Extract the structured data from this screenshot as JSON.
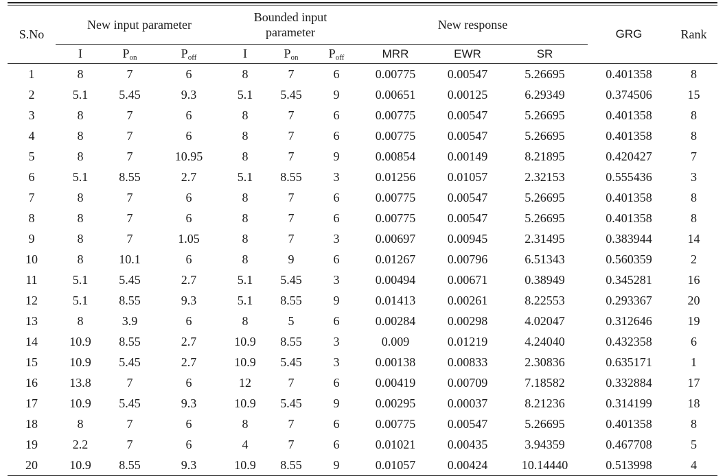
{
  "header": {
    "sno": "S.No",
    "new_input": "New input parameter",
    "bounded_input_line1": "Bounded input",
    "bounded_input_line2": "parameter",
    "new_response": "New response",
    "grg": "GRG",
    "rank": "Rank",
    "sub_I": "I",
    "sub_P": "P",
    "sub_on": "on",
    "sub_off": "off",
    "mrr": "MRR",
    "ewr": "EWR",
    "sr": "SR"
  },
  "rows": [
    [
      "1",
      "8",
      "7",
      "6",
      "8",
      "7",
      "6",
      "0.00775",
      "0.00547",
      "5.26695",
      "0.401358",
      "8"
    ],
    [
      "2",
      "5.1",
      "5.45",
      "9.3",
      "5.1",
      "5.45",
      "9",
      "0.00651",
      "0.00125",
      "6.29349",
      "0.374506",
      "15"
    ],
    [
      "3",
      "8",
      "7",
      "6",
      "8",
      "7",
      "6",
      "0.00775",
      "0.00547",
      "5.26695",
      "0.401358",
      "8"
    ],
    [
      "4",
      "8",
      "7",
      "6",
      "8",
      "7",
      "6",
      "0.00775",
      "0.00547",
      "5.26695",
      "0.401358",
      "8"
    ],
    [
      "5",
      "8",
      "7",
      "10.95",
      "8",
      "7",
      "9",
      "0.00854",
      "0.00149",
      "8.21895",
      "0.420427",
      "7"
    ],
    [
      "6",
      "5.1",
      "8.55",
      "2.7",
      "5.1",
      "8.55",
      "3",
      "0.01256",
      "0.01057",
      "2.32153",
      "0.555436",
      "3"
    ],
    [
      "7",
      "8",
      "7",
      "6",
      "8",
      "7",
      "6",
      "0.00775",
      "0.00547",
      "5.26695",
      "0.401358",
      "8"
    ],
    [
      "8",
      "8",
      "7",
      "6",
      "8",
      "7",
      "6",
      "0.00775",
      "0.00547",
      "5.26695",
      "0.401358",
      "8"
    ],
    [
      "9",
      "8",
      "7",
      "1.05",
      "8",
      "7",
      "3",
      "0.00697",
      "0.00945",
      "2.31495",
      "0.383944",
      "14"
    ],
    [
      "10",
      "8",
      "10.1",
      "6",
      "8",
      "9",
      "6",
      "0.01267",
      "0.00796",
      "6.51343",
      "0.560359",
      "2"
    ],
    [
      "11",
      "5.1",
      "5.45",
      "2.7",
      "5.1",
      "5.45",
      "3",
      "0.00494",
      "0.00671",
      "0.38949",
      "0.345281",
      "16"
    ],
    [
      "12",
      "5.1",
      "8.55",
      "9.3",
      "5.1",
      "8.55",
      "9",
      "0.01413",
      "0.00261",
      "8.22553",
      "0.293367",
      "20"
    ],
    [
      "13",
      "8",
      "3.9",
      "6",
      "8",
      "5",
      "6",
      "0.00284",
      "0.00298",
      "4.02047",
      "0.312646",
      "19"
    ],
    [
      "14",
      "10.9",
      "8.55",
      "2.7",
      "10.9",
      "8.55",
      "3",
      "0.009",
      "0.01219",
      "4.24040",
      "0.432358",
      "6"
    ],
    [
      "15",
      "10.9",
      "5.45",
      "2.7",
      "10.9",
      "5.45",
      "3",
      "0.00138",
      "0.00833",
      "2.30836",
      "0.635171",
      "1"
    ],
    [
      "16",
      "13.8",
      "7",
      "6",
      "12",
      "7",
      "6",
      "0.00419",
      "0.00709",
      "7.18582",
      "0.332884",
      "17"
    ],
    [
      "17",
      "10.9",
      "5.45",
      "9.3",
      "10.9",
      "5.45",
      "9",
      "0.00295",
      "0.00037",
      "8.21236",
      "0.314199",
      "18"
    ],
    [
      "18",
      "8",
      "7",
      "6",
      "8",
      "7",
      "6",
      "0.00775",
      "0.00547",
      "5.26695",
      "0.401358",
      "8"
    ],
    [
      "19",
      "2.2",
      "7",
      "6",
      "4",
      "7",
      "6",
      "0.01021",
      "0.00435",
      "3.94359",
      "0.467708",
      "5"
    ],
    [
      "20",
      "10.9",
      "8.55",
      "9.3",
      "10.9",
      "8.55",
      "9",
      "0.01057",
      "0.00424",
      "10.14440",
      "0.513998",
      "4"
    ]
  ]
}
